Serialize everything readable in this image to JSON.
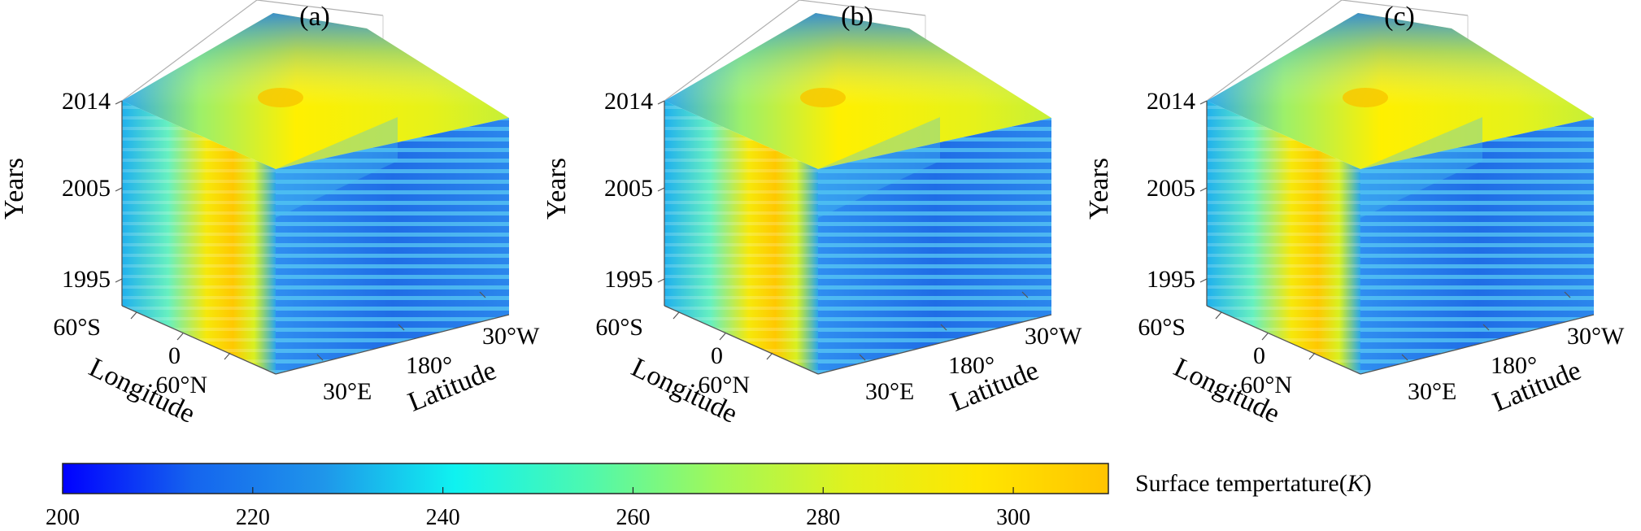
{
  "figure": {
    "colorbar": {
      "label": "Surface tempertature(",
      "label_unit": "K",
      "label_close": ")",
      "min": 200,
      "max": 310,
      "ticks": [
        "200",
        "220",
        "240",
        "260",
        "280",
        "300"
      ],
      "colormap": [
        "#0000ff",
        "#1565ee",
        "#1f96ea",
        "#0ff2f0",
        "#4cf8b0",
        "#a0f85a",
        "#dff21e",
        "#ffe600",
        "#ffc400"
      ]
    }
  },
  "chart_data": [
    {
      "type": "heatmap",
      "panel": "(a)",
      "zlabel": "Years",
      "xlabel": "Longitude",
      "ylabel": "Latitude",
      "z_ticks": [
        "2014",
        "2005",
        "1995"
      ],
      "x_ticks": [
        "60°S",
        "0",
        "60°N"
      ],
      "y_ticks": [
        "30°E",
        "180°",
        "30°W"
      ],
      "value_range": [
        200,
        310
      ]
    },
    {
      "type": "heatmap",
      "panel": "(b)",
      "zlabel": "Years",
      "xlabel": "Longitude",
      "ylabel": "Latitude",
      "z_ticks": [
        "2014",
        "2005",
        "1995"
      ],
      "x_ticks": [
        "60°S",
        "0",
        "60°N"
      ],
      "y_ticks": [
        "30°E",
        "180°",
        "30°W"
      ],
      "value_range": [
        200,
        310
      ]
    },
    {
      "type": "heatmap",
      "panel": "(c)",
      "zlabel": "Years",
      "xlabel": "Longitude",
      "ylabel": "Latitude",
      "z_ticks": [
        "2014",
        "2005",
        "1995"
      ],
      "x_ticks": [
        "60°S",
        "0",
        "60°N"
      ],
      "y_ticks": [
        "30°E",
        "180°",
        "30°W"
      ],
      "value_range": [
        200,
        310
      ]
    }
  ]
}
